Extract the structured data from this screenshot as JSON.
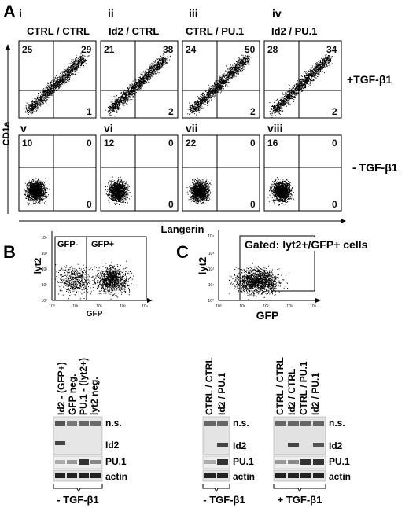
{
  "panel_a": {
    "letter": "A",
    "y_axis_label": "CD1a",
    "x_axis_label": "Langerin",
    "row_labels": [
      "+TGF-β1",
      "- TGF-β1"
    ],
    "plots": [
      {
        "numeral": "i",
        "title": "CTRL / CTRL",
        "quadrants": {
          "ul": "25",
          "ur": "29",
          "lr": "1"
        }
      },
      {
        "numeral": "ii",
        "title": "Id2 / CTRL",
        "quadrants": {
          "ul": "21",
          "ur": "38",
          "lr": "2"
        }
      },
      {
        "numeral": "iii",
        "title": "CTRL / PU.1",
        "quadrants": {
          "ul": "24",
          "ur": "50",
          "lr": "2"
        }
      },
      {
        "numeral": "iv",
        "title": "Id2 / PU.1",
        "quadrants": {
          "ul": "28",
          "ur": "34",
          "lr": "2"
        }
      },
      {
        "numeral": "v",
        "title": "",
        "quadrants": {
          "ul": "10",
          "ur": "0",
          "lr": "0"
        }
      },
      {
        "numeral": "vi",
        "title": "",
        "quadrants": {
          "ul": "12",
          "ur": "0",
          "lr": "0"
        }
      },
      {
        "numeral": "vii",
        "title": "",
        "quadrants": {
          "ul": "22",
          "ur": "0",
          "lr": "0"
        }
      },
      {
        "numeral": "viii",
        "title": "",
        "quadrants": {
          "ul": "16",
          "ur": "0",
          "lr": "0"
        }
      }
    ]
  },
  "panel_b": {
    "letter": "B",
    "y_axis_label": "lyt2",
    "x_axis_label": "GFP",
    "gates": [
      "GFP-",
      "GFP+"
    ],
    "lanes": [
      "Id2 - (GFP+)",
      "GFP neg.",
      "PU.1 - (lyt2+)",
      "lyt2 neg."
    ],
    "bands": [
      "n.s.",
      "Id2",
      "PU.1",
      "actin"
    ],
    "condition": "- TGF-β1"
  },
  "panel_c": {
    "letter": "C",
    "y_axis_label": "lyt2",
    "x_axis_label": "GFP",
    "gate_label": "Gated: lyt2+/GFP+ cells",
    "left_blot": {
      "lanes": [
        "CTRL / CTRL",
        "Id2 / PU.1"
      ],
      "bands": [
        "n.s.",
        "Id2",
        "PU.1",
        "actin"
      ],
      "condition": "- TGF-β1"
    },
    "right_blot": {
      "lanes": [
        "CTRL / CTRL",
        "Id2 / CTRL",
        "CTRL / PU.1",
        "Id2 / PU.1"
      ],
      "bands": [
        "n.s.",
        "Id2",
        "PU.1",
        "actin"
      ],
      "condition": "+ TGF-β1"
    }
  },
  "axis_ticks": [
    "10⁰",
    "10¹",
    "10²",
    "10³",
    "10⁴"
  ]
}
